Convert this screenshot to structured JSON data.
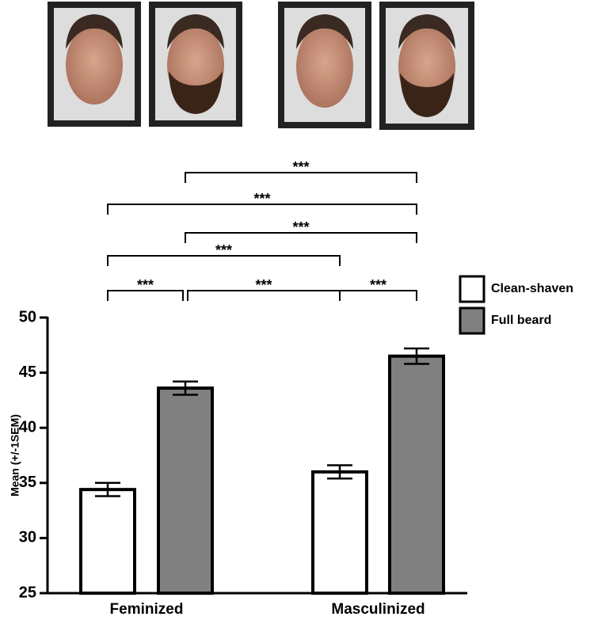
{
  "chart_data": {
    "type": "bar",
    "categories": [
      "Feminized",
      "Masculinized"
    ],
    "series": [
      {
        "name": "Clean-shaven",
        "color": "#ffffff",
        "values": [
          34.4,
          36.0
        ],
        "errors": [
          0.6,
          0.6
        ]
      },
      {
        "name": "Full beard",
        "color": "#808080",
        "values": [
          43.6,
          46.5
        ],
        "errors": [
          0.6,
          0.7
        ]
      }
    ],
    "ylabel": "Mean (+/-1SEM)",
    "ylim": [
      25,
      50
    ],
    "yticks": [
      25,
      30,
      35,
      40,
      45,
      50
    ],
    "annotations": [
      "***",
      "***",
      "***",
      "***",
      "***",
      "***",
      "***"
    ]
  }
}
